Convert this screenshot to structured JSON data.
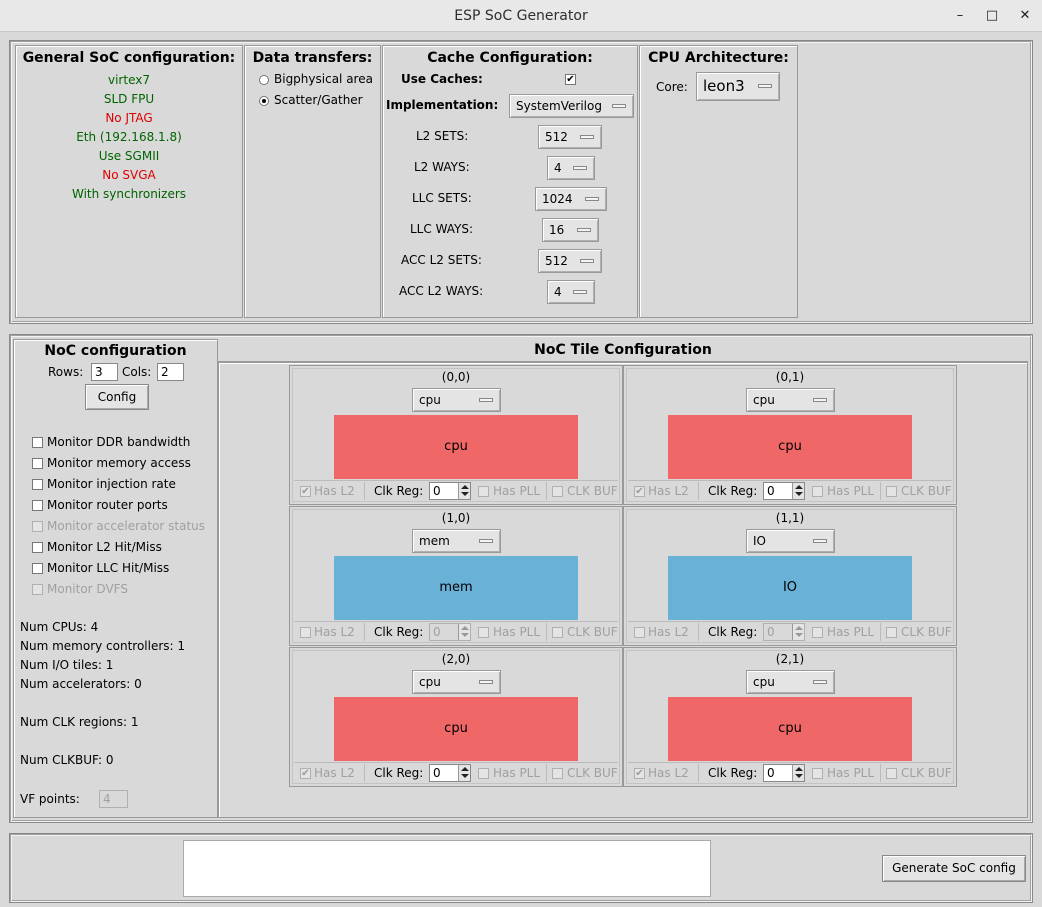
{
  "window": {
    "title": "ESP SoC Generator",
    "minimize": "–",
    "maximize": "□",
    "close": "✕"
  },
  "general": {
    "heading": "General SoC configuration:",
    "lines": [
      {
        "text": "virtex7",
        "color": "green"
      },
      {
        "text": "SLD FPU",
        "color": "green"
      },
      {
        "text": "No JTAG",
        "color": "red"
      },
      {
        "text": "Eth (192.168.1.8)",
        "color": "green"
      },
      {
        "text": "Use SGMII",
        "color": "green"
      },
      {
        "text": "No SVGA",
        "color": "red"
      },
      {
        "text": "With synchronizers",
        "color": "green"
      }
    ]
  },
  "transfers": {
    "heading": "Data transfers:",
    "options": [
      {
        "label": "Bigphysical area",
        "selected": false
      },
      {
        "label": "Scatter/Gather",
        "selected": true
      }
    ]
  },
  "cache": {
    "heading": "Cache Configuration:",
    "use_caches_label": "Use Caches:",
    "use_caches_checked": true,
    "implementation_label": "Implementation:",
    "implementation_value": "SystemVerilog",
    "rows": [
      {
        "label": "L2 SETS:",
        "value": "512"
      },
      {
        "label": "L2 WAYS:",
        "value": "4"
      },
      {
        "label": "LLC SETS:",
        "value": "1024"
      },
      {
        "label": "LLC WAYS:",
        "value": "16"
      },
      {
        "label": "ACC L2 SETS:",
        "value": "512"
      },
      {
        "label": "ACC L2 WAYS:",
        "value": "4"
      }
    ]
  },
  "cpu": {
    "heading": "CPU Architecture:",
    "core_label": "Core:",
    "core_value": "leon3"
  },
  "noc": {
    "heading": "NoC configuration",
    "rows_label": "Rows:",
    "rows_value": "3",
    "cols_label": "Cols:",
    "cols_value": "2",
    "config_button": "Config",
    "monitors": [
      {
        "label": "Monitor DDR bandwidth",
        "enabled": true
      },
      {
        "label": "Monitor memory access",
        "enabled": true
      },
      {
        "label": "Monitor injection rate",
        "enabled": true
      },
      {
        "label": "Monitor router ports",
        "enabled": true
      },
      {
        "label": "Monitor accelerator status",
        "enabled": false
      },
      {
        "label": "Monitor L2 Hit/Miss",
        "enabled": true
      },
      {
        "label": "Monitor LLC Hit/Miss",
        "enabled": true
      },
      {
        "label": "Monitor DVFS",
        "enabled": false
      }
    ],
    "stats": {
      "num_cpus": "Num CPUs: 4",
      "num_mem": "Num memory controllers: 1",
      "num_io": "Num I/O tiles: 1",
      "num_acc": "Num accelerators: 0",
      "num_clk": "Num CLK regions: 1",
      "num_clkbuf": "Num CLKBUF: 0",
      "vf_label": "VF points:",
      "vf_value": "4"
    }
  },
  "tiles_heading": "NoC Tile Configuration",
  "tile_labels": {
    "has_l2": "Has L2",
    "clk_reg": "Clk Reg:",
    "has_pll": "Has PLL",
    "clk_buf": "CLK BUF"
  },
  "tiles": [
    {
      "coord": "(0,0)",
      "type": "cpu",
      "label": "cpu",
      "color": "#ef6767",
      "has_l2": true,
      "clk_reg": "0",
      "enabled": true
    },
    {
      "coord": "(0,1)",
      "type": "cpu",
      "label": "cpu",
      "color": "#ef6767",
      "has_l2": true,
      "clk_reg": "0",
      "enabled": true
    },
    {
      "coord": "(1,0)",
      "type": "mem",
      "label": "mem",
      "color": "#6ab1d8",
      "has_l2": false,
      "clk_reg": "0",
      "enabled": false
    },
    {
      "coord": "(1,1)",
      "type": "IO",
      "label": "IO",
      "color": "#6ab1d8",
      "has_l2": false,
      "clk_reg": "0",
      "enabled": false
    },
    {
      "coord": "(2,0)",
      "type": "cpu",
      "label": "cpu",
      "color": "#ef6767",
      "has_l2": true,
      "clk_reg": "0",
      "enabled": true
    },
    {
      "coord": "(2,1)",
      "type": "cpu",
      "label": "cpu",
      "color": "#ef6767",
      "has_l2": true,
      "clk_reg": "0",
      "enabled": true
    }
  ],
  "bottom": {
    "message": "",
    "generate_button": "Generate SoC config"
  }
}
